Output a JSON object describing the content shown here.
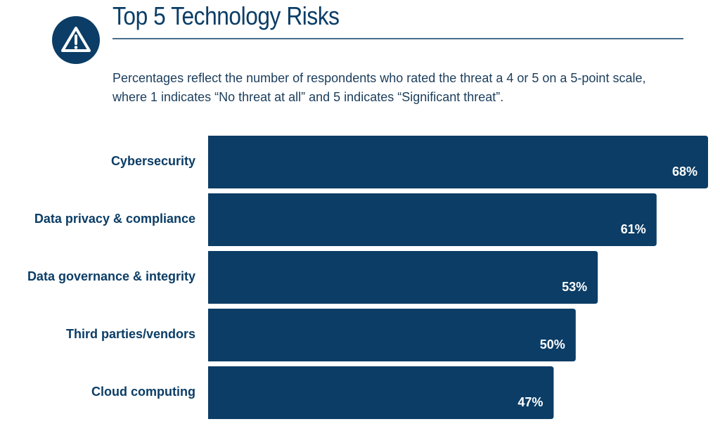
{
  "chart_data": {
    "type": "bar",
    "orientation": "horizontal",
    "title": "Top 5 Technology Risks",
    "subtitle": "Percentages reflect the number of respondents who rated the threat a 4 or 5 on a 5-point scale, where 1 indicates “No threat at all” and 5 indicates “Significant threat”.",
    "categories": [
      "Cybersecurity",
      "Data privacy & compliance",
      "Data governance & integrity",
      "Third parties/vendors",
      "Cloud computing"
    ],
    "values": [
      68,
      61,
      53,
      50,
      47
    ],
    "value_labels": [
      "68%",
      "61%",
      "53%",
      "50%",
      "47%"
    ],
    "color": "#0b3d66"
  }
}
